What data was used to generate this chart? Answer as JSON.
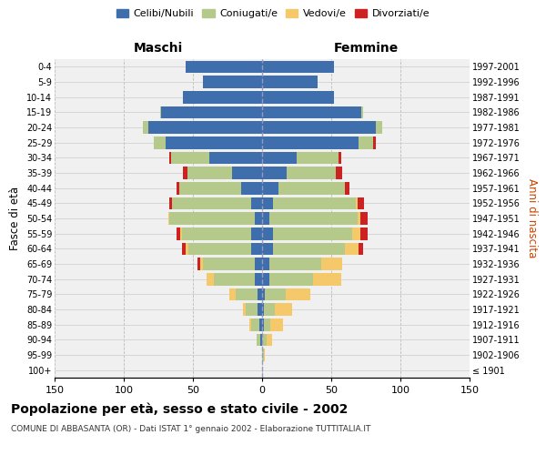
{
  "age_groups": [
    "100+",
    "95-99",
    "90-94",
    "85-89",
    "80-84",
    "75-79",
    "70-74",
    "65-69",
    "60-64",
    "55-59",
    "50-54",
    "45-49",
    "40-44",
    "35-39",
    "30-34",
    "25-29",
    "20-24",
    "15-19",
    "10-14",
    "5-9",
    "0-4"
  ],
  "birth_years": [
    "≤ 1901",
    "1902-1906",
    "1907-1911",
    "1912-1916",
    "1917-1921",
    "1922-1926",
    "1927-1931",
    "1932-1936",
    "1937-1941",
    "1942-1946",
    "1947-1951",
    "1952-1956",
    "1957-1961",
    "1962-1966",
    "1967-1971",
    "1972-1976",
    "1977-1981",
    "1982-1986",
    "1987-1991",
    "1992-1996",
    "1997-2001"
  ],
  "colors": {
    "celibi": "#3e6eac",
    "coniugati": "#b5c98a",
    "vedovi": "#f5c96a",
    "divorziati": "#cc2222"
  },
  "m_cel": [
    0,
    0,
    1,
    2,
    3,
    3,
    5,
    5,
    8,
    8,
    5,
    8,
    15,
    22,
    38,
    70,
    82,
    73,
    57,
    43,
    55
  ],
  "m_con": [
    0,
    0,
    3,
    6,
    9,
    16,
    30,
    38,
    45,
    50,
    62,
    57,
    45,
    32,
    28,
    8,
    4,
    1,
    0,
    0,
    0
  ],
  "m_ved": [
    0,
    0,
    0,
    1,
    2,
    5,
    5,
    2,
    2,
    1,
    1,
    0,
    0,
    0,
    0,
    0,
    0,
    0,
    0,
    0,
    0
  ],
  "m_div": [
    0,
    0,
    0,
    0,
    0,
    0,
    0,
    2,
    3,
    3,
    0,
    2,
    2,
    3,
    1,
    0,
    0,
    0,
    0,
    0,
    0
  ],
  "f_nub": [
    0,
    0,
    0,
    1,
    1,
    2,
    5,
    5,
    8,
    8,
    5,
    8,
    12,
    18,
    25,
    70,
    82,
    72,
    52,
    40,
    52
  ],
  "f_con": [
    0,
    1,
    3,
    5,
    8,
    15,
    32,
    38,
    52,
    57,
    64,
    60,
    48,
    35,
    30,
    10,
    5,
    1,
    0,
    0,
    0
  ],
  "f_ved": [
    0,
    1,
    4,
    9,
    13,
    18,
    20,
    15,
    10,
    6,
    2,
    1,
    0,
    0,
    0,
    0,
    0,
    0,
    0,
    0,
    0
  ],
  "f_div": [
    0,
    0,
    0,
    0,
    0,
    0,
    0,
    0,
    3,
    5,
    5,
    5,
    3,
    5,
    2,
    2,
    0,
    0,
    0,
    0,
    0
  ],
  "xlim": 150,
  "title": "Popolazione per età, sesso e stato civile - 2002",
  "subtitle": "COMUNE DI ABBASANTA (OR) - Dati ISTAT 1° gennaio 2002 - Elaborazione TUTTITALIA.IT",
  "ylabel_left": "Fasce di età",
  "ylabel_right": "Anni di nascita",
  "label_maschi": "Maschi",
  "label_femmine": "Femmine",
  "legend_labels": [
    "Celibi/Nubili",
    "Coniugati/e",
    "Vedovi/e",
    "Divorziati/e"
  ],
  "bg_color": "#f0f0f0"
}
